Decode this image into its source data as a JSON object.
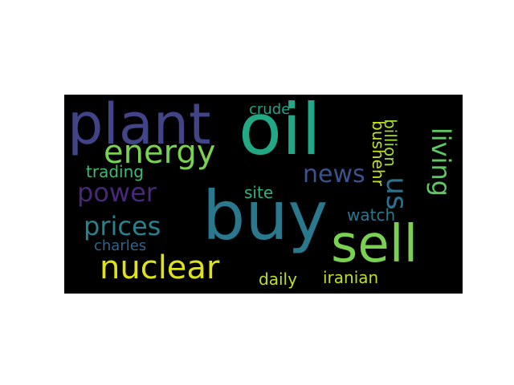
{
  "wordcloud": {
    "background": "#000000",
    "words": [
      {
        "text": "oil",
        "color": "#22a884",
        "orientation": "horizontal"
      },
      {
        "text": "plant",
        "color": "#414487",
        "orientation": "horizontal"
      },
      {
        "text": "buy",
        "color": "#2a788e",
        "orientation": "horizontal"
      },
      {
        "text": "sell",
        "color": "#7ad151",
        "orientation": "horizontal"
      },
      {
        "text": "energy",
        "color": "#7ad151",
        "orientation": "horizontal"
      },
      {
        "text": "nuclear",
        "color": "#dde318",
        "orientation": "horizontal"
      },
      {
        "text": "power",
        "color": "#482878",
        "orientation": "horizontal"
      },
      {
        "text": "prices",
        "color": "#26828e",
        "orientation": "horizontal"
      },
      {
        "text": "news",
        "color": "#3b528b",
        "orientation": "horizontal"
      },
      {
        "text": "us",
        "color": "#2c728e",
        "orientation": "vertical"
      },
      {
        "text": "living",
        "color": "#5ec962",
        "orientation": "vertical"
      },
      {
        "text": "trading",
        "color": "#3fbc73",
        "orientation": "horizontal"
      },
      {
        "text": "charles",
        "color": "#33638d",
        "orientation": "horizontal"
      },
      {
        "text": "daily",
        "color": "#bddf26",
        "orientation": "horizontal"
      },
      {
        "text": "iranian",
        "color": "#bddf26",
        "orientation": "horizontal"
      },
      {
        "text": "watch",
        "color": "#2a788e",
        "orientation": "horizontal"
      },
      {
        "text": "site",
        "color": "#2fb47c",
        "orientation": "horizontal"
      },
      {
        "text": "crude",
        "color": "#20a386",
        "orientation": "horizontal"
      },
      {
        "text": "bushehr",
        "color": "#c2df23",
        "orientation": "vertical"
      },
      {
        "text": "billion",
        "color": "#a0da39",
        "orientation": "vertical"
      }
    ]
  }
}
